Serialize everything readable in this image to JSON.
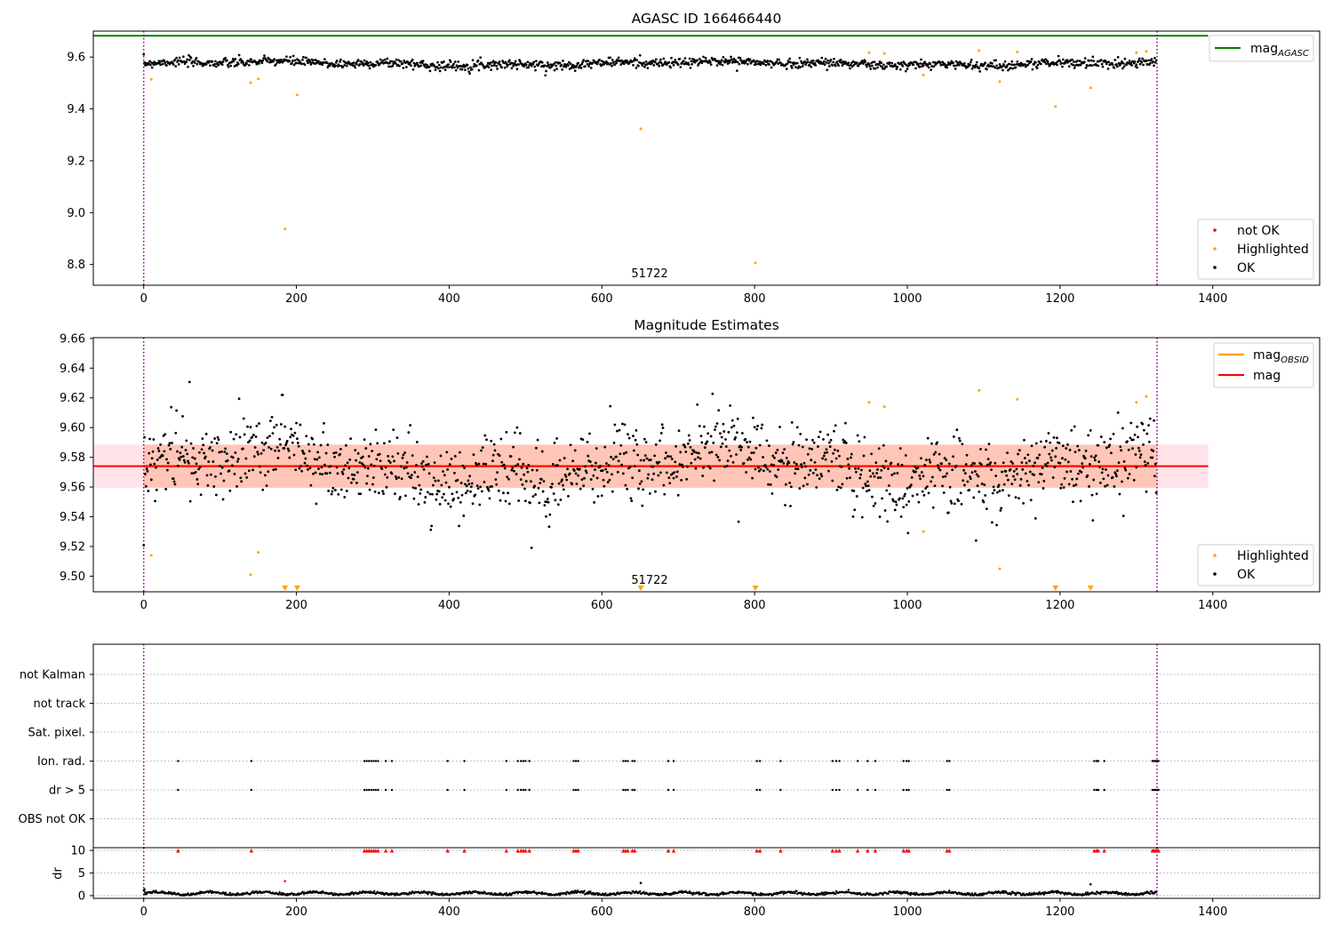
{
  "colors": {
    "ok": "#000000",
    "highlighted": "#ffa500",
    "not_ok": "#ff0000",
    "mag_agasc": "#008000",
    "mag_obsid": "#ffa500",
    "mag": "#ff0000",
    "mag_band": "#ffc0cb",
    "mag_obsid_band": "#ffa07a",
    "obs_boundary": "#800080",
    "flag_grid": "#b0b0b0"
  },
  "chart_data": [
    {
      "type": "scatter",
      "panel": "top",
      "title": "AGASC ID 166466440",
      "xlim": [
        -66,
        1540
      ],
      "ylim": [
        8.72,
        9.7
      ],
      "xticks": [
        0,
        200,
        400,
        600,
        800,
        1000,
        1200,
        1400
      ],
      "yticks": [
        8.8,
        9.0,
        9.2,
        9.4,
        9.6
      ],
      "ytick_labels": [
        "8.8",
        "9.0",
        "9.2",
        "9.4",
        "9.6"
      ],
      "obs_boundaries": [
        0,
        1327
      ],
      "obsid_label": {
        "text": "51722",
        "x": 663
      },
      "mag_agasc_line": {
        "y": 9.682,
        "x_range": [
          -66,
          1394
        ]
      },
      "ok_trend": {
        "mean": 9.575,
        "spread": 0.009,
        "n": 1327
      },
      "highlighted_points": {
        "x": [
          10,
          140,
          150,
          185,
          201,
          651,
          801,
          950,
          970,
          1021,
          1094,
          1121,
          1144,
          1194,
          1240,
          1300,
          1313
        ],
        "y": [
          9.514,
          9.501,
          9.516,
          8.937,
          9.454,
          9.323,
          8.806,
          9.617,
          9.614,
          9.531,
          9.625,
          9.505,
          9.619,
          9.409,
          9.481,
          9.617,
          9.622
        ]
      },
      "legend_lines": {
        "entries": [
          {
            "label": "mag",
            "sub": "AGASC",
            "color": "#008000"
          }
        ],
        "position": "upper right"
      },
      "legend_points": {
        "entries": [
          {
            "label": "not OK",
            "color": "#ff0000"
          },
          {
            "label": "Highlighted",
            "color": "#ffa500"
          },
          {
            "label": "OK",
            "color": "#000000"
          }
        ],
        "position": "lower right"
      }
    },
    {
      "type": "scatter",
      "panel": "middle",
      "title": "Magnitude Estimates",
      "xlim": [
        -66,
        1540
      ],
      "ylim": [
        9.4895,
        9.6605
      ],
      "xticks": [
        0,
        200,
        400,
        600,
        800,
        1000,
        1200,
        1400
      ],
      "yticks": [
        9.5,
        9.52,
        9.54,
        9.56,
        9.58,
        9.6,
        9.62,
        9.64,
        9.66
      ],
      "ytick_labels": [
        "9.50",
        "9.52",
        "9.54",
        "9.56",
        "9.58",
        "9.60",
        "9.62",
        "9.64",
        "9.66"
      ],
      "obs_boundaries": [
        0,
        1327
      ],
      "obsid_label": {
        "text": "51722",
        "x": 663
      },
      "mag": 9.574,
      "mag_band": [
        9.5595,
        9.5885
      ],
      "mag_obsid": 9.574,
      "mag_obsid_band": [
        9.5595,
        9.5885
      ],
      "band_x_range": [
        -66,
        1394
      ],
      "obsid_band_x_range": [
        0,
        1327
      ],
      "ok_points": {
        "mean": 9.574,
        "spread": 0.013,
        "n": 1327
      },
      "highlighted_points": {
        "x": [
          10,
          140,
          150,
          950,
          970,
          1021,
          1094,
          1121,
          1144,
          1300,
          1313
        ],
        "y": [
          9.514,
          9.501,
          9.516,
          9.617,
          9.614,
          9.53,
          9.625,
          9.505,
          9.619,
          9.617,
          9.621
        ]
      },
      "highlighted_below_range_x": [
        185,
        201,
        651,
        801,
        1194,
        1240
      ],
      "legend_lines": {
        "entries": [
          {
            "label": "mag",
            "sub": "OBSID",
            "color": "#ffa500"
          },
          {
            "label": "mag",
            "sub": "",
            "color": "#ff0000"
          }
        ],
        "position": "upper right"
      },
      "legend_points": {
        "entries": [
          {
            "label": "Highlighted",
            "color": "#ffa500"
          },
          {
            "label": "OK",
            "color": "#000000"
          }
        ],
        "position": "lower right"
      }
    },
    {
      "type": "scatter",
      "panel": "flags",
      "xlim": [
        -66,
        1540
      ],
      "ylim": [
        -0.5,
        6
      ],
      "categories": [
        "not Kalman",
        "not track",
        "Sat. pixel.",
        "Ion. rad.",
        "dr > 5",
        "OBS not OK"
      ],
      "obs_boundaries": [
        0,
        1327
      ],
      "flag_points": {
        "Ion. rad.": [
          45,
          141,
          289,
          292,
          295,
          298,
          301,
          304,
          307,
          317,
          325,
          398,
          420,
          475,
          490,
          494,
          497,
          500,
          505,
          563,
          566,
          569,
          628,
          631,
          634,
          640,
          643,
          687,
          694,
          803,
          807,
          834,
          902,
          907,
          911,
          935,
          948,
          958,
          995,
          999,
          1002,
          1052,
          1055,
          1245,
          1248,
          1250,
          1258,
          1321,
          1323,
          1325,
          1327,
          1329
        ],
        "dr > 5": [
          45,
          141,
          289,
          292,
          295,
          298,
          301,
          304,
          307,
          317,
          325,
          398,
          420,
          475,
          490,
          494,
          497,
          500,
          505,
          563,
          566,
          569,
          628,
          631,
          634,
          640,
          643,
          687,
          694,
          803,
          807,
          834,
          902,
          907,
          911,
          935,
          948,
          958,
          995,
          999,
          1002,
          1052,
          1055,
          1245,
          1248,
          1250,
          1258,
          1321,
          1323,
          1325,
          1327,
          1329
        ]
      }
    },
    {
      "type": "scatter",
      "panel": "dr",
      "ylabel": "dr",
      "xlim": [
        -66,
        1540
      ],
      "ylim": [
        -0.6,
        10.6
      ],
      "xticks": [
        0,
        200,
        400,
        600,
        800,
        1000,
        1200,
        1400
      ],
      "yticks": [
        0,
        5,
        10
      ],
      "ytick_labels": [
        "0",
        "5",
        "10"
      ],
      "obs_boundaries": [
        0,
        1327
      ],
      "dr_typical": {
        "mean": 0.5,
        "spread": 0.35,
        "n": 1327
      },
      "dr_outliers": {
        "x": [
          1,
          185,
          651,
          1240
        ],
        "y": [
          1.4,
          3.2,
          2.8,
          2.5
        ]
      },
      "clipped_markers_x": [
        45,
        141,
        289,
        292,
        295,
        298,
        301,
        304,
        307,
        317,
        325,
        398,
        420,
        475,
        490,
        494,
        497,
        500,
        505,
        563,
        566,
        569,
        628,
        631,
        634,
        640,
        643,
        687,
        694,
        803,
        807,
        834,
        902,
        907,
        911,
        935,
        948,
        958,
        995,
        999,
        1002,
        1052,
        1055,
        1245,
        1248,
        1250,
        1258,
        1321,
        1323,
        1325,
        1327,
        1329
      ]
    }
  ]
}
